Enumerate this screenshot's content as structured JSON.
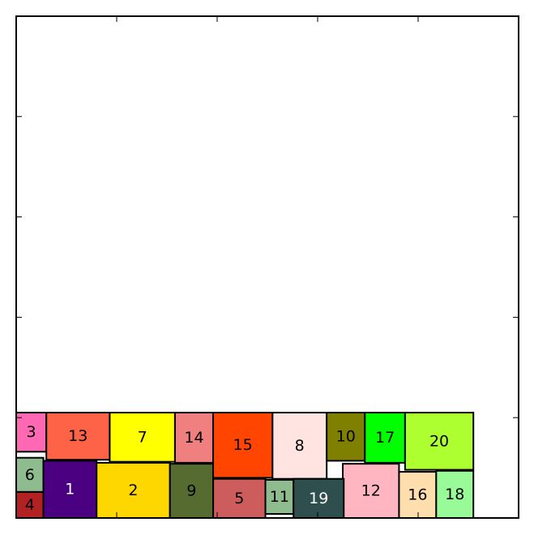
{
  "chart_data": {
    "type": "rectangle-packing",
    "xlim": [
      0,
      5
    ],
    "ylim": [
      0,
      5
    ],
    "grid": false,
    "rects": [
      {
        "label": "1",
        "color": "#4B0082",
        "text_color": "#ffffff",
        "x": 0.27,
        "y": 0.0,
        "w": 0.53,
        "h": 0.57
      },
      {
        "label": "2",
        "color": "#FFD700",
        "text_color": "#000000",
        "x": 0.8,
        "y": 0.0,
        "w": 0.73,
        "h": 0.55
      },
      {
        "label": "3",
        "color": "#FF69B4",
        "text_color": "#000000",
        "x": 0.0,
        "y": 0.66,
        "w": 0.3,
        "h": 0.39
      },
      {
        "label": "4",
        "color": "#B22222",
        "text_color": "#000000",
        "x": 0.0,
        "y": 0.0,
        "w": 0.27,
        "h": 0.26
      },
      {
        "label": "5",
        "color": "#CD5C5C",
        "text_color": "#000000",
        "x": 1.96,
        "y": 0.0,
        "w": 0.52,
        "h": 0.39
      },
      {
        "label": "6",
        "color": "#8FBC8F",
        "text_color": "#000000",
        "x": 0.0,
        "y": 0.26,
        "w": 0.27,
        "h": 0.34
      },
      {
        "label": "7",
        "color": "#FFFF00",
        "text_color": "#000000",
        "x": 0.93,
        "y": 0.56,
        "w": 0.65,
        "h": 0.49
      },
      {
        "label": "8",
        "color": "#FFE4E1",
        "text_color": "#000000",
        "x": 2.55,
        "y": 0.39,
        "w": 0.54,
        "h": 0.66
      },
      {
        "label": "9",
        "color": "#556B2F",
        "text_color": "#000000",
        "x": 1.53,
        "y": 0.0,
        "w": 0.43,
        "h": 0.54
      },
      {
        "label": "10",
        "color": "#808000",
        "text_color": "#000000",
        "x": 3.09,
        "y": 0.57,
        "w": 0.38,
        "h": 0.48
      },
      {
        "label": "11",
        "color": "#8FBC8F",
        "text_color": "#000000",
        "x": 2.48,
        "y": 0.04,
        "w": 0.28,
        "h": 0.34
      },
      {
        "label": "12",
        "color": "#FFB6C1",
        "text_color": "#000000",
        "x": 3.25,
        "y": 0.0,
        "w": 0.56,
        "h": 0.54
      },
      {
        "label": "13",
        "color": "#FF6347",
        "text_color": "#000000",
        "x": 0.3,
        "y": 0.58,
        "w": 0.63,
        "h": 0.47
      },
      {
        "label": "14",
        "color": "#F08080",
        "text_color": "#000000",
        "x": 1.58,
        "y": 0.55,
        "w": 0.38,
        "h": 0.5
      },
      {
        "label": "15",
        "color": "#FF4500",
        "text_color": "#000000",
        "x": 1.96,
        "y": 0.4,
        "w": 0.59,
        "h": 0.65
      },
      {
        "label": "16",
        "color": "#FFDEAD",
        "text_color": "#000000",
        "x": 3.81,
        "y": 0.0,
        "w": 0.37,
        "h": 0.46
      },
      {
        "label": "17",
        "color": "#00FF00",
        "text_color": "#000000",
        "x": 3.47,
        "y": 0.55,
        "w": 0.4,
        "h": 0.5
      },
      {
        "label": "18",
        "color": "#98FB98",
        "text_color": "#000000",
        "x": 4.18,
        "y": 0.0,
        "w": 0.37,
        "h": 0.47
      },
      {
        "label": "19",
        "color": "#2F4F4F",
        "text_color": "#ffffff",
        "x": 2.76,
        "y": 0.0,
        "w": 0.5,
        "h": 0.39
      },
      {
        "label": "20",
        "color": "#ADFF2F",
        "text_color": "#000000",
        "x": 3.87,
        "y": 0.48,
        "w": 0.68,
        "h": 0.57
      }
    ]
  }
}
